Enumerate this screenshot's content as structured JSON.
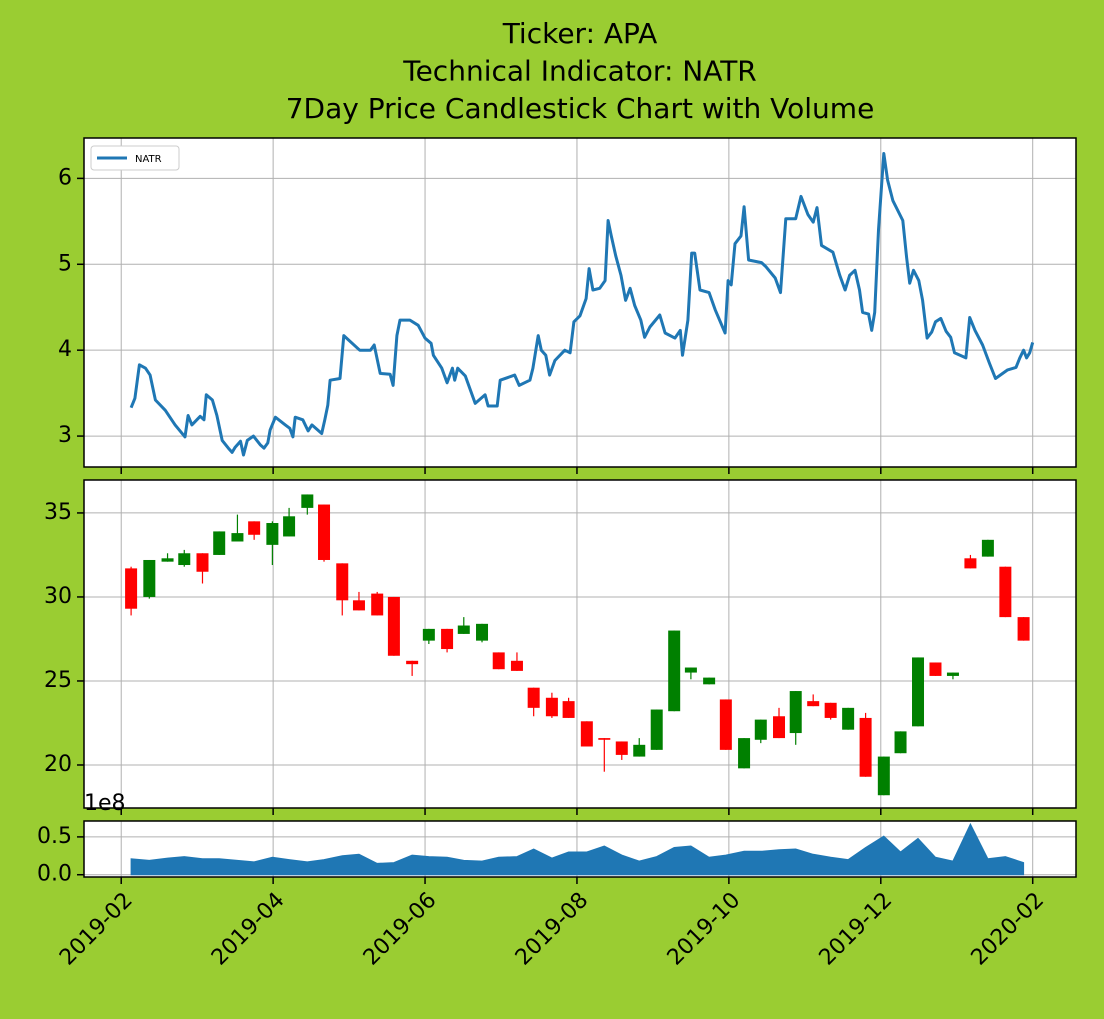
{
  "chart_data": [
    {
      "type": "line",
      "title": [
        "Ticker: APA",
        "Technical Indicator: NATR",
        "7Day Price Candlestick Chart with Volume"
      ],
      "xlim": [
        -0.49,
        12.57
      ],
      "ylim": [
        2.64,
        6.47
      ],
      "xticks": [
        0,
        2,
        4,
        6,
        8,
        10,
        12
      ],
      "yticks": [
        3,
        4,
        5,
        6
      ],
      "grid": true,
      "legend": "upper left",
      "x": [
        0.13,
        0.18,
        0.24,
        0.32,
        0.38,
        0.45,
        0.58,
        0.71,
        0.84,
        0.88,
        0.93,
        1.04,
        1.09,
        1.12,
        1.2,
        1.26,
        1.33,
        1.41,
        1.46,
        1.5,
        1.57,
        1.61,
        1.66,
        1.74,
        1.83,
        1.88,
        1.93,
        1.96,
        2.03,
        2.16,
        2.22,
        2.26,
        2.29,
        2.39,
        2.46,
        2.51,
        2.64,
        2.68,
        2.72,
        2.75,
        2.88,
        2.93,
        3.14,
        3.28,
        3.33,
        3.41,
        3.54,
        3.58,
        3.63,
        3.67,
        3.8,
        3.91,
        4.0,
        4.08,
        4.11,
        4.22,
        4.29,
        4.36,
        4.39,
        4.43,
        4.53,
        4.66,
        4.79,
        4.83,
        4.95,
        4.99,
        5.18,
        5.24,
        5.38,
        5.42,
        5.49,
        5.53,
        5.59,
        5.64,
        5.71,
        5.84,
        5.91,
        5.96,
        6.04,
        6.12,
        6.16,
        6.21,
        6.3,
        6.37,
        6.41,
        6.45,
        6.51,
        6.58,
        6.64,
        6.7,
        6.76,
        6.84,
        6.89,
        6.96,
        7.09,
        7.16,
        7.29,
        7.36,
        7.39,
        7.46,
        7.51,
        7.55,
        7.62,
        7.74,
        7.82,
        7.95,
        7.99,
        8.03,
        8.08,
        8.16,
        8.2,
        8.26,
        8.43,
        8.49,
        8.61,
        8.68,
        8.75,
        8.88,
        8.95,
        9.04,
        9.11,
        9.16,
        9.22,
        9.37,
        9.46,
        9.53,
        9.59,
        9.66,
        9.72,
        9.76,
        9.84,
        9.88,
        9.92,
        9.97,
        10.04,
        10.09,
        10.16,
        10.29,
        10.34,
        10.38,
        10.43,
        10.5,
        10.55,
        10.61,
        10.67,
        10.72,
        10.79,
        10.86,
        10.92,
        10.97,
        11.12,
        11.17,
        11.24,
        11.34,
        11.43,
        11.51,
        11.67,
        11.78,
        11.83,
        11.88,
        11.92,
        11.96,
        12.0
      ],
      "series": [
        {
          "name": "NATR",
          "color": "#1f77b4",
          "values": [
            3.33,
            3.44,
            3.83,
            3.79,
            3.71,
            3.42,
            3.3,
            3.13,
            2.99,
            3.24,
            3.13,
            3.23,
            3.19,
            3.48,
            3.42,
            3.24,
            2.95,
            2.86,
            2.81,
            2.87,
            2.94,
            2.78,
            2.95,
            3.0,
            2.9,
            2.86,
            2.92,
            3.07,
            3.22,
            3.13,
            3.09,
            2.99,
            3.22,
            3.19,
            3.06,
            3.13,
            3.03,
            3.19,
            3.36,
            3.65,
            3.67,
            4.17,
            4.0,
            4.0,
            4.06,
            3.73,
            3.72,
            3.59,
            4.17,
            4.35,
            4.35,
            4.29,
            4.14,
            4.08,
            3.94,
            3.79,
            3.62,
            3.79,
            3.65,
            3.79,
            3.7,
            3.38,
            3.48,
            3.35,
            3.35,
            3.65,
            3.71,
            3.59,
            3.65,
            3.79,
            4.17,
            4.0,
            3.94,
            3.71,
            3.88,
            4.0,
            3.97,
            4.33,
            4.4,
            4.6,
            4.95,
            4.7,
            4.72,
            4.81,
            5.51,
            5.34,
            5.1,
            4.87,
            4.58,
            4.72,
            4.52,
            4.35,
            4.15,
            4.27,
            4.41,
            4.2,
            4.14,
            4.23,
            3.94,
            4.35,
            5.13,
            5.13,
            4.7,
            4.67,
            4.47,
            4.2,
            4.81,
            4.76,
            5.24,
            5.33,
            5.67,
            5.05,
            5.02,
            4.97,
            4.84,
            4.67,
            5.53,
            5.53,
            5.79,
            5.58,
            5.49,
            5.66,
            5.22,
            5.14,
            4.87,
            4.7,
            4.87,
            4.93,
            4.7,
            4.44,
            4.42,
            4.23,
            4.44,
            5.4,
            6.29,
            5.98,
            5.74,
            5.51,
            5.08,
            4.78,
            4.93,
            4.81,
            4.58,
            4.14,
            4.21,
            4.33,
            4.37,
            4.22,
            4.15,
            3.97,
            3.91,
            4.38,
            4.23,
            4.06,
            3.85,
            3.67,
            3.77,
            3.8,
            3.91,
            4.0,
            3.91,
            3.97,
            4.09
          ]
        }
      ]
    },
    {
      "type": "candlestick",
      "xlim": [
        -0.49,
        12.57
      ],
      "ylim": [
        17.44,
        36.96
      ],
      "xticks": [
        0,
        2,
        4,
        6,
        8,
        10,
        12
      ],
      "yticks": [
        20,
        25,
        30,
        35
      ],
      "grid": true,
      "up_color": "green",
      "down_color": "red",
      "x": [
        0.13,
        0.37,
        0.61,
        0.83,
        1.07,
        1.29,
        1.53,
        1.75,
        1.99,
        2.21,
        2.45,
        2.67,
        2.91,
        3.13,
        3.37,
        3.59,
        3.83,
        4.05,
        4.29,
        4.51,
        4.75,
        4.97,
        5.21,
        5.43,
        5.67,
        5.89,
        6.13,
        6.36,
        6.59,
        6.82,
        7.05,
        7.28,
        7.5,
        7.74,
        7.96,
        8.2,
        8.42,
        8.66,
        8.88,
        9.11,
        9.34,
        9.57,
        9.8,
        10.04,
        10.26,
        10.49,
        10.72,
        10.95,
        11.18,
        11.41,
        11.64,
        11.88
      ],
      "open": [
        31.7,
        30.0,
        32.1,
        31.9,
        32.6,
        32.5,
        33.3,
        34.5,
        33.1,
        33.6,
        35.3,
        35.5,
        32.0,
        29.8,
        30.2,
        30.0,
        26.2,
        27.4,
        28.1,
        27.8,
        27.4,
        26.7,
        26.2,
        24.6,
        24.0,
        23.8,
        22.6,
        21.6,
        21.4,
        20.5,
        20.9,
        23.2,
        25.5,
        24.8,
        23.9,
        19.8,
        21.5,
        22.9,
        21.9,
        23.8,
        23.7,
        22.1,
        22.8,
        18.2,
        20.7,
        22.3,
        26.1,
        25.3,
        32.3,
        32.4,
        31.8,
        28.8
      ],
      "high": [
        31.8,
        32.2,
        32.6,
        32.8,
        32.6,
        33.9,
        34.9,
        34.5,
        34.5,
        35.3,
        36.1,
        35.5,
        32.0,
        30.3,
        30.3,
        30.0,
        26.2,
        28.1,
        28.1,
        28.8,
        28.4,
        26.7,
        26.7,
        24.6,
        24.3,
        24.0,
        22.6,
        21.6,
        21.4,
        21.6,
        23.3,
        28.0,
        25.8,
        25.2,
        23.9,
        21.6,
        22.7,
        23.4,
        24.4,
        24.2,
        23.7,
        23.4,
        23.1,
        20.5,
        22.0,
        26.4,
        26.1,
        25.5,
        32.5,
        33.4,
        31.8,
        28.8
      ],
      "low": [
        28.9,
        29.9,
        32.1,
        31.8,
        30.8,
        32.5,
        33.3,
        33.4,
        31.9,
        33.6,
        34.9,
        32.1,
        28.9,
        29.2,
        28.9,
        26.5,
        25.3,
        27.2,
        26.7,
        27.8,
        27.3,
        25.7,
        25.6,
        22.9,
        22.8,
        22.8,
        21.1,
        19.6,
        20.3,
        20.5,
        20.9,
        23.2,
        25.1,
        24.8,
        20.9,
        19.8,
        21.3,
        21.6,
        21.2,
        23.5,
        22.7,
        22.1,
        19.3,
        18.2,
        20.7,
        22.3,
        25.3,
        25.1,
        31.7,
        32.4,
        28.8,
        27.4
      ],
      "close": [
        29.3,
        32.2,
        32.3,
        32.6,
        31.5,
        33.9,
        33.8,
        33.7,
        34.4,
        34.8,
        36.1,
        32.2,
        29.8,
        29.2,
        28.9,
        26.5,
        26.0,
        28.1,
        26.9,
        28.3,
        28.4,
        25.7,
        25.6,
        23.4,
        22.9,
        22.8,
        21.1,
        21.5,
        20.6,
        21.2,
        23.3,
        28.0,
        25.8,
        25.2,
        20.9,
        21.6,
        22.7,
        21.6,
        24.4,
        23.5,
        22.8,
        23.4,
        19.3,
        20.5,
        22.0,
        26.4,
        25.3,
        25.5,
        31.7,
        33.4,
        28.8,
        27.4
      ]
    },
    {
      "type": "area",
      "offset_label": "1e8",
      "color": "#1f77b4",
      "xlim": [
        -0.49,
        12.57
      ],
      "ylim": [
        -0.03,
        0.71
      ],
      "xticks": [
        {
          "value": 0,
          "label": "2019-02"
        },
        {
          "value": 2,
          "label": "2019-04"
        },
        {
          "value": 4,
          "label": "2019-06"
        },
        {
          "value": 6,
          "label": "2019-08"
        },
        {
          "value": 8,
          "label": "2019-10"
        },
        {
          "value": 10,
          "label": "2019-12"
        },
        {
          "value": 12,
          "label": "2020-02"
        }
      ],
      "yticks": [
        {
          "value": 0,
          "label": "0.0"
        },
        0.5
      ],
      "grid": true,
      "x": [
        0.13,
        0.37,
        0.61,
        0.83,
        1.07,
        1.29,
        1.53,
        1.75,
        1.99,
        2.21,
        2.45,
        2.67,
        2.91,
        3.13,
        3.37,
        3.59,
        3.83,
        4.05,
        4.29,
        4.51,
        4.75,
        4.97,
        5.21,
        5.43,
        5.67,
        5.89,
        6.13,
        6.36,
        6.59,
        6.82,
        7.05,
        7.28,
        7.5,
        7.74,
        7.96,
        8.2,
        8.42,
        8.66,
        8.88,
        9.11,
        9.34,
        9.57,
        9.8,
        10.04,
        10.26,
        10.49,
        10.72,
        10.95,
        11.18,
        11.41,
        11.64,
        11.88
      ],
      "values": [
        0.21,
        0.19,
        0.22,
        0.24,
        0.21,
        0.21,
        0.19,
        0.17,
        0.23,
        0.2,
        0.17,
        0.2,
        0.25,
        0.27,
        0.15,
        0.16,
        0.26,
        0.24,
        0.23,
        0.19,
        0.18,
        0.23,
        0.24,
        0.34,
        0.22,
        0.3,
        0.3,
        0.38,
        0.26,
        0.18,
        0.24,
        0.36,
        0.38,
        0.23,
        0.26,
        0.31,
        0.31,
        0.33,
        0.34,
        0.27,
        0.23,
        0.2,
        0.36,
        0.51,
        0.3,
        0.48,
        0.23,
        0.18,
        0.67,
        0.21,
        0.24,
        0.16
      ]
    }
  ]
}
